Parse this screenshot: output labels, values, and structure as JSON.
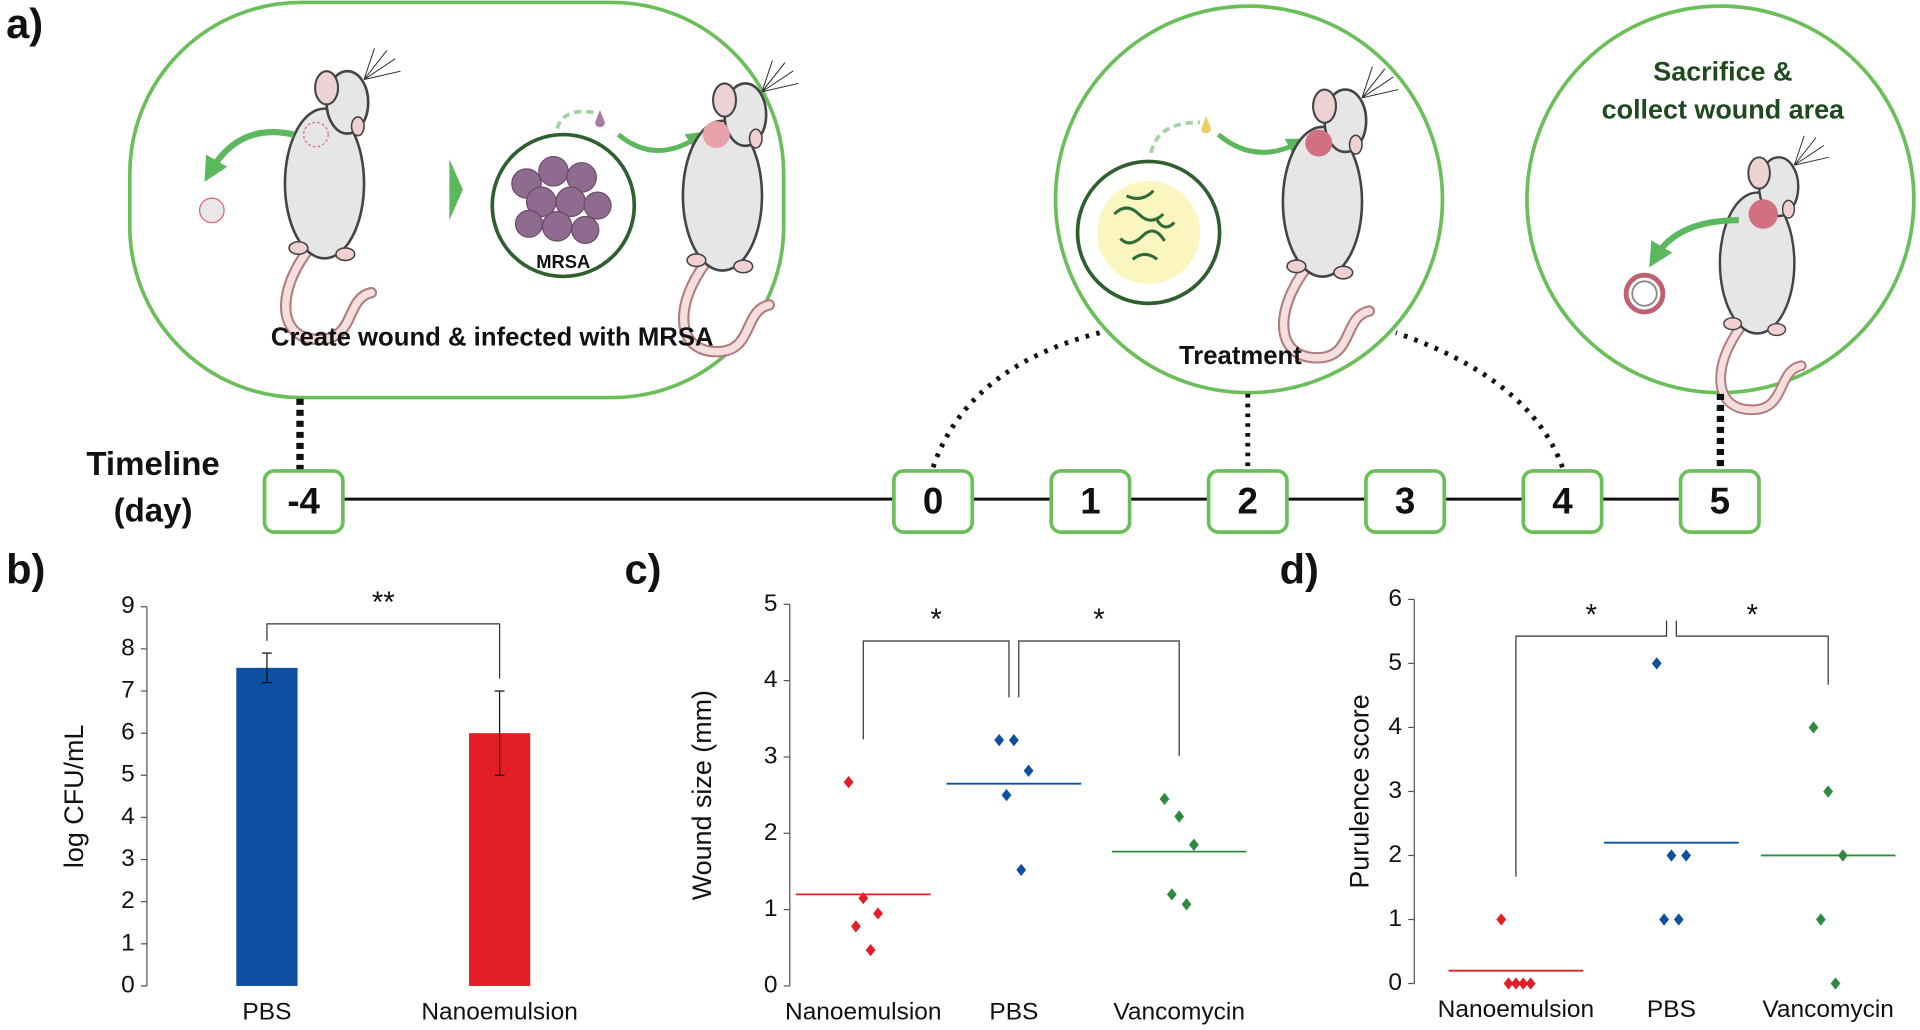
{
  "figure": {
    "panel_a": {
      "panel_label": "a)",
      "steps": [
        {
          "caption": "Create wound & infected with MRSA",
          "inset_label": "MRSA"
        },
        {
          "caption": "Treatment"
        },
        {
          "caption_lines": [
            "Sacrifice &",
            "collect wound area"
          ]
        }
      ],
      "timeline": {
        "label_lines": [
          "Timeline",
          "(day)"
        ],
        "days": [
          -4,
          0,
          1,
          2,
          3,
          4,
          5
        ]
      }
    }
  },
  "chart_data": [
    {
      "type": "bar",
      "panel_label": "b)",
      "ylabel": "log CFU/mL",
      "categories": [
        "PBS",
        "Nanoemulsion"
      ],
      "values": [
        7.55,
        6.0
      ],
      "errors": [
        0.35,
        1.0
      ],
      "colors": [
        "#0d4fa0",
        "#e31e24"
      ],
      "ylim": [
        0,
        9
      ],
      "yticks": [
        0,
        1,
        2,
        3,
        4,
        5,
        6,
        7,
        8,
        9
      ],
      "significance": [
        {
          "label": "**",
          "pair": [
            0,
            1
          ]
        }
      ]
    },
    {
      "type": "strip",
      "panel_label": "c)",
      "ylabel": "Wound size (mm)",
      "categories": [
        "Nanoemulsion",
        "PBS",
        "Vancomycin"
      ],
      "values": [
        [
          2.67,
          1.15,
          0.95,
          0.78,
          0.47
        ],
        [
          3.22,
          3.22,
          2.82,
          2.5,
          1.52
        ],
        [
          2.45,
          2.22,
          1.85,
          1.2,
          1.07
        ]
      ],
      "means": [
        1.2,
        2.65,
        1.76
      ],
      "colors": [
        "#e31e24",
        "#0d4fa0",
        "#2e8b3e"
      ],
      "ylim": [
        0,
        5
      ],
      "yticks": [
        0,
        1,
        2,
        3,
        4,
        5
      ],
      "significance": [
        {
          "label": "*",
          "pair": [
            0,
            1
          ]
        },
        {
          "label": "*",
          "pair": [
            1,
            2
          ]
        }
      ]
    },
    {
      "type": "strip",
      "panel_label": "d)",
      "ylabel": "Purulence score",
      "categories": [
        "Nanoemulsion",
        "PBS",
        "Vancomycin"
      ],
      "values": [
        [
          1,
          0,
          0,
          0,
          0
        ],
        [
          5,
          2,
          2,
          1,
          1
        ],
        [
          4,
          3,
          2,
          1,
          0
        ]
      ],
      "means": [
        0.2,
        2.2,
        2
      ],
      "colors": [
        "#e31e24",
        "#0d4fa0",
        "#2e8b3e"
      ],
      "ylim": [
        0,
        6
      ],
      "yticks": [
        0,
        1,
        2,
        3,
        4,
        5,
        6
      ],
      "significance": [
        {
          "label": "*",
          "pair": [
            0,
            1
          ]
        },
        {
          "label": "*",
          "pair": [
            1,
            2
          ]
        }
      ]
    }
  ]
}
